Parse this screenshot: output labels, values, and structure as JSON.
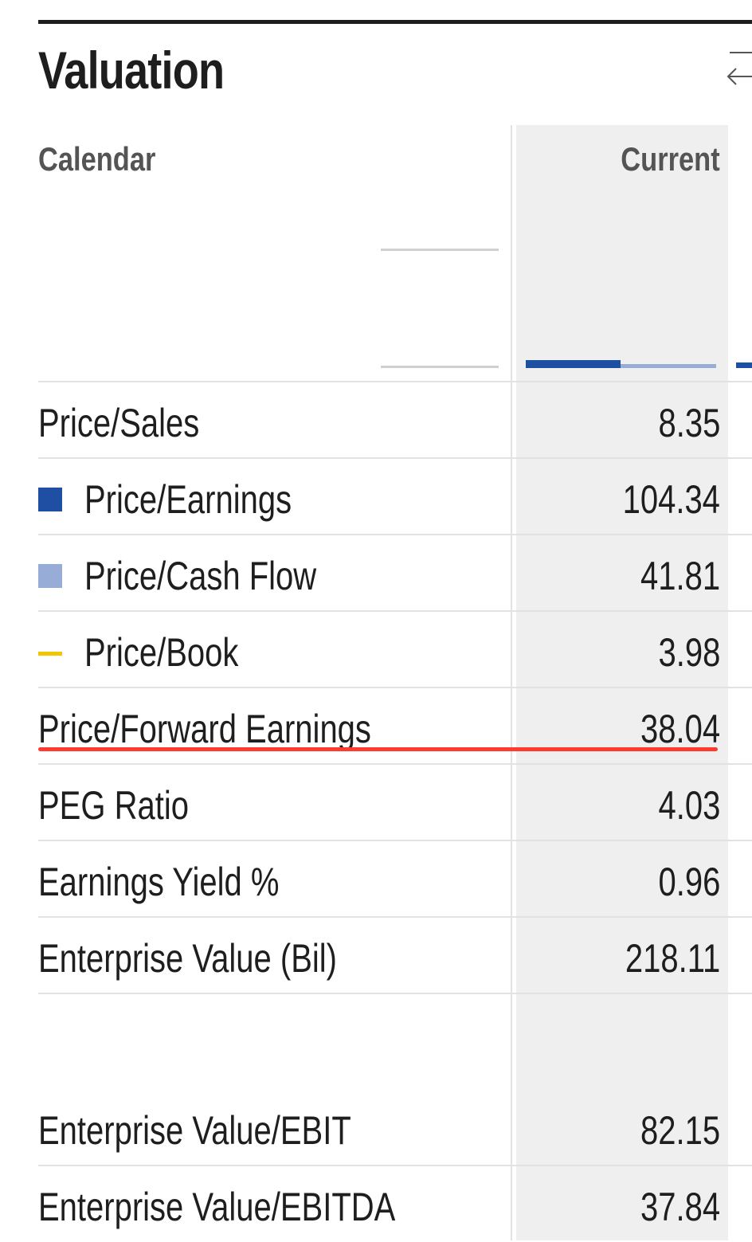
{
  "section": {
    "title": "Valuation"
  },
  "columns": {
    "left_header": "Calendar",
    "right_header": "Current"
  },
  "legend_colors": {
    "price_earnings": "#1f4fa3",
    "price_cash_flow": "#97acd6",
    "price_book": "#f2c500"
  },
  "highlight_color": "#ff3b30",
  "rows": [
    {
      "label": "Price/Sales",
      "value": "8.35"
    },
    {
      "label": "Price/Earnings",
      "value": "104.34"
    },
    {
      "label": "Price/Cash Flow",
      "value": "41.81"
    },
    {
      "label": "Price/Book",
      "value": "3.98"
    },
    {
      "label": "Price/Forward Earnings",
      "value": "38.04"
    },
    {
      "label": "PEG Ratio",
      "value": "4.03"
    },
    {
      "label": "Earnings Yield %",
      "value": "0.96"
    },
    {
      "label": "Enterprise Value (Bil)",
      "value": "218.11"
    },
    {
      "label": "Enterprise Value/EBIT",
      "value": "82.15"
    },
    {
      "label": "Enterprise Value/EBITDA",
      "value": "37.84"
    }
  ]
}
